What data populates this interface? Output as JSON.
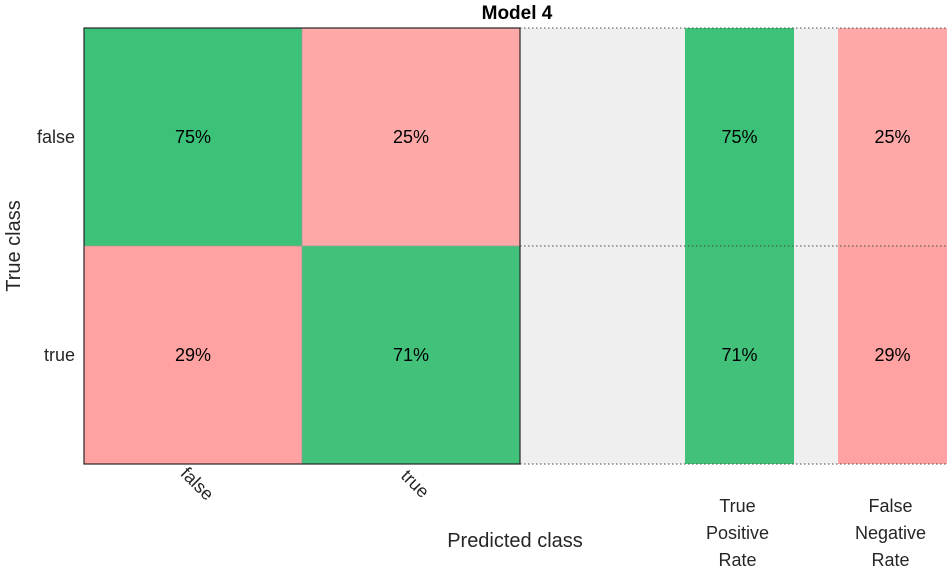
{
  "chart_data": {
    "type": "heatmap",
    "title": "Model 4",
    "xlabel": "Predicted class",
    "ylabel": "True class",
    "row_labels": [
      "false",
      "true"
    ],
    "col_labels": [
      "false",
      "true"
    ],
    "values": [
      [
        75,
        25
      ],
      [
        29,
        71
      ]
    ],
    "value_format": "{v}%",
    "summary_columns": [
      {
        "label_lines": [
          "True",
          "Positive",
          "Rate"
        ],
        "values": [
          75,
          71
        ]
      },
      {
        "label_lines": [
          "False",
          "Negative",
          "Rate"
        ],
        "values": [
          25,
          29
        ]
      }
    ],
    "colors": {
      "correct": "#42c17b",
      "correct_light": "#3cc178",
      "incorrect": "#ffa8a8",
      "incorrect_dark": "#ffa2a1",
      "gap": "#efefef",
      "frame": "#262626"
    }
  }
}
